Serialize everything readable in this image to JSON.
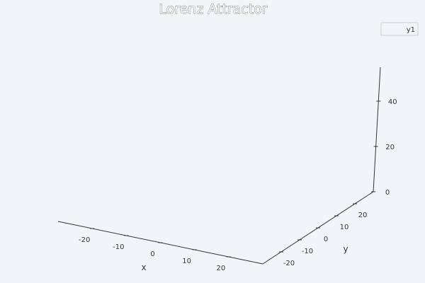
{
  "chart_data": {
    "type": "line",
    "projection": "3d",
    "title": "Lorenz Attractor",
    "xlabel": "x",
    "ylabel": "y",
    "zlabel": "",
    "x_ticks": [
      -20,
      -10,
      0,
      10,
      20
    ],
    "y_ticks": [
      -20,
      -10,
      0,
      10,
      20
    ],
    "z_ticks": [
      0,
      20,
      40
    ],
    "xlim": [
      -30,
      30
    ],
    "ylim": [
      -30,
      30
    ],
    "zlim": [
      0,
      55
    ],
    "grid": false,
    "legend_position": "top-right",
    "series": [
      {
        "name": "y1",
        "color": "#009af9",
        "points": []
      }
    ]
  }
}
